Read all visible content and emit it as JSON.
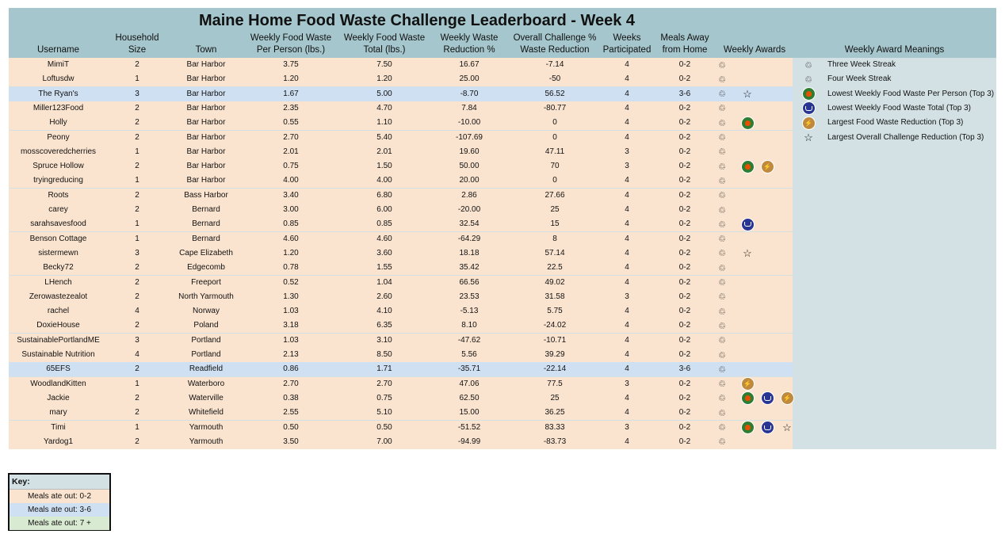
{
  "title": "Maine Home Food Waste Challenge Leaderboard - Week 4",
  "columns": [
    "Username",
    "Household Size",
    "Town",
    "Weekly Food Waste Per Person (lbs.)",
    "Weekly Food Waste Total (lbs.)",
    "Weekly Waste Reduction %",
    "Overall Challenge % Waste Reduction",
    "Weeks Participated",
    "Meals Away from Home",
    "Weekly Awards"
  ],
  "header_lines": {
    "username": [
      "",
      "Username"
    ],
    "household": [
      "Household",
      "Size"
    ],
    "town": [
      "",
      "Town"
    ],
    "per_person": [
      "Weekly Food Waste",
      "Per Person (lbs.)"
    ],
    "total": [
      "Weekly Food Waste",
      "Total (lbs.)"
    ],
    "weekly_red": [
      "Weekly Waste",
      "Reduction %"
    ],
    "overall_red": [
      "Overall Challenge %",
      "Waste Reduction"
    ],
    "weeks": [
      "Weeks",
      "Participated"
    ],
    "meals": [
      "Meals Away",
      "from Home"
    ],
    "awards": [
      "",
      "Weekly Awards"
    ],
    "meanings": [
      "",
      "Weekly Award Meanings"
    ]
  },
  "colors": {
    "band_0_2": "#fbe4cf",
    "band_3_6": "#cfe0f2",
    "band_7_plus": "#d9ead3",
    "header": "#a5c6cc",
    "panel": "#d3e1e4"
  },
  "rows": [
    {
      "user": "MimiT",
      "hh": "2",
      "town": "Bar Harbor",
      "pp": "3.75",
      "tot": "7.50",
      "wr": "16.67",
      "or": "-7.14",
      "wk": "4",
      "meals": "0-2",
      "awards": [
        "streak"
      ]
    },
    {
      "user": "Loftusdw",
      "hh": "1",
      "town": "Bar Harbor",
      "pp": "1.20",
      "tot": "1.20",
      "wr": "25.00",
      "or": "-50",
      "wk": "4",
      "meals": "0-2",
      "awards": [
        "streak"
      ]
    },
    {
      "user": "The Ryan's",
      "hh": "3",
      "town": "Bar Harbor",
      "pp": "1.67",
      "tot": "5.00",
      "wr": "-8.70",
      "or": "56.52",
      "wk": "4",
      "meals": "3-6",
      "awards": [
        "streak",
        "star"
      ]
    },
    {
      "user": "Miller123Food",
      "hh": "2",
      "town": "Bar Harbor",
      "pp": "2.35",
      "tot": "4.70",
      "wr": "7.84",
      "or": "-80.77",
      "wk": "4",
      "meals": "0-2",
      "awards": [
        "streak"
      ]
    },
    {
      "user": "Holly",
      "hh": "2",
      "town": "Bar Harbor",
      "pp": "0.55",
      "tot": "1.10",
      "wr": "-10.00",
      "or": "0",
      "wk": "4",
      "meals": "0-2",
      "awards": [
        "streak",
        "pp"
      ]
    },
    {
      "user": "Peony",
      "hh": "2",
      "town": "Bar Harbor",
      "pp": "2.70",
      "tot": "5.40",
      "wr": "-107.69",
      "or": "0",
      "wk": "4",
      "meals": "0-2",
      "awards": [
        "streak"
      ]
    },
    {
      "user": "mosscoveredcherries",
      "hh": "1",
      "town": "Bar Harbor",
      "pp": "2.01",
      "tot": "2.01",
      "wr": "19.60",
      "or": "47.11",
      "wk": "3",
      "meals": "0-2",
      "awards": [
        "streak"
      ]
    },
    {
      "user": "Spruce Hollow",
      "hh": "2",
      "town": "Bar Harbor",
      "pp": "0.75",
      "tot": "1.50",
      "wr": "50.00",
      "or": "70",
      "wk": "3",
      "meals": "0-2",
      "awards": [
        "streak",
        "pp",
        "red"
      ]
    },
    {
      "user": "tryingreducing",
      "hh": "1",
      "town": "Bar Harbor",
      "pp": "4.00",
      "tot": "4.00",
      "wr": "20.00",
      "or": "0",
      "wk": "4",
      "meals": "0-2",
      "awards": [
        "streak"
      ]
    },
    {
      "user": "Roots",
      "hh": "2",
      "town": "Bass Harbor",
      "pp": "3.40",
      "tot": "6.80",
      "wr": "2.86",
      "or": "27.66",
      "wk": "4",
      "meals": "0-2",
      "awards": [
        "streak"
      ]
    },
    {
      "user": "carey",
      "hh": "2",
      "town": "Bernard",
      "pp": "3.00",
      "tot": "6.00",
      "wr": "-20.00",
      "or": "25",
      "wk": "4",
      "meals": "0-2",
      "awards": [
        "streak"
      ]
    },
    {
      "user": "sarahsavesfood",
      "hh": "1",
      "town": "Bernard",
      "pp": "0.85",
      "tot": "0.85",
      "wr": "32.54",
      "or": "15",
      "wk": "4",
      "meals": "0-2",
      "awards": [
        "streak",
        "tot"
      ]
    },
    {
      "user": "Benson Cottage",
      "hh": "1",
      "town": "Bernard",
      "pp": "4.60",
      "tot": "4.60",
      "wr": "-64.29",
      "or": "8",
      "wk": "4",
      "meals": "0-2",
      "awards": [
        "streak"
      ]
    },
    {
      "user": "sistermewn",
      "hh": "3",
      "town": "Cape Elizabeth",
      "pp": "1.20",
      "tot": "3.60",
      "wr": "18.18",
      "or": "57.14",
      "wk": "4",
      "meals": "0-2",
      "awards": [
        "streak",
        "star"
      ]
    },
    {
      "user": "Becky72",
      "hh": "2",
      "town": "Edgecomb",
      "pp": "0.78",
      "tot": "1.55",
      "wr": "35.42",
      "or": "22.5",
      "wk": "4",
      "meals": "0-2",
      "awards": [
        "streak"
      ]
    },
    {
      "user": "LHench",
      "hh": "2",
      "town": "Freeport",
      "pp": "0.52",
      "tot": "1.04",
      "wr": "66.56",
      "or": "49.02",
      "wk": "4",
      "meals": "0-2",
      "awards": [
        "streak"
      ]
    },
    {
      "user": "Zerowastezealot",
      "hh": "2",
      "town": "North Yarmouth",
      "pp": "1.30",
      "tot": "2.60",
      "wr": "23.53",
      "or": "31.58",
      "wk": "3",
      "meals": "0-2",
      "awards": [
        "streak"
      ]
    },
    {
      "user": "rachel",
      "hh": "4",
      "town": "Norway",
      "pp": "1.03",
      "tot": "4.10",
      "wr": "-5.13",
      "or": "5.75",
      "wk": "4",
      "meals": "0-2",
      "awards": [
        "streak"
      ]
    },
    {
      "user": "DoxieHouse",
      "hh": "2",
      "town": "Poland",
      "pp": "3.18",
      "tot": "6.35",
      "wr": "8.10",
      "or": "-24.02",
      "wk": "4",
      "meals": "0-2",
      "awards": [
        "streak"
      ]
    },
    {
      "user": "SustainablePortlandME",
      "hh": "3",
      "town": "Portland",
      "pp": "1.03",
      "tot": "3.10",
      "wr": "-47.62",
      "or": "-10.71",
      "wk": "4",
      "meals": "0-2",
      "awards": [
        "streak"
      ]
    },
    {
      "user": "Sustainable Nutrition",
      "hh": "4",
      "town": "Portland",
      "pp": "2.13",
      "tot": "8.50",
      "wr": "5.56",
      "or": "39.29",
      "wk": "4",
      "meals": "0-2",
      "awards": [
        "streak"
      ]
    },
    {
      "user": "65EFS",
      "hh": "2",
      "town": "Readfield",
      "pp": "0.86",
      "tot": "1.71",
      "wr": "-35.71",
      "or": "-22.14",
      "wk": "4",
      "meals": "3-6",
      "awards": [
        "streak"
      ]
    },
    {
      "user": "WoodlandKitten",
      "hh": "1",
      "town": "Waterboro",
      "pp": "2.70",
      "tot": "2.70",
      "wr": "47.06",
      "or": "77.5",
      "wk": "3",
      "meals": "0-2",
      "awards": [
        "streak",
        "red"
      ]
    },
    {
      "user": "Jackie",
      "hh": "2",
      "town": "Waterville",
      "pp": "0.38",
      "tot": "0.75",
      "wr": "62.50",
      "or": "25",
      "wk": "4",
      "meals": "0-2",
      "awards": [
        "streak",
        "pp",
        "tot",
        "red"
      ]
    },
    {
      "user": "mary",
      "hh": "2",
      "town": "Whitefield",
      "pp": "2.55",
      "tot": "5.10",
      "wr": "15.00",
      "or": "36.25",
      "wk": "4",
      "meals": "0-2",
      "awards": [
        "streak"
      ]
    },
    {
      "user": "Timi",
      "hh": "1",
      "town": "Yarmouth",
      "pp": "0.50",
      "tot": "0.50",
      "wr": "-51.52",
      "or": "83.33",
      "wk": "3",
      "meals": "0-2",
      "awards": [
        "streak",
        "pp",
        "tot",
        "star"
      ]
    },
    {
      "user": "Yardog1",
      "hh": "2",
      "town": "Yarmouth",
      "pp": "3.50",
      "tot": "7.00",
      "wr": "-94.99",
      "or": "-83.73",
      "wk": "4",
      "meals": "0-2",
      "awards": [
        "streak"
      ]
    }
  ],
  "award_meanings": [
    {
      "icon": "streak-3",
      "text": "Three Week Streak"
    },
    {
      "icon": "streak-4",
      "text": "Four Week Streak"
    },
    {
      "icon": "pp",
      "text": "Lowest Weekly Food Waste Per Person (Top 3)"
    },
    {
      "icon": "tot",
      "text": "Lowest Weekly Food Waste Total (Top 3)"
    },
    {
      "icon": "red",
      "text": "Largest Food Waste Reduction (Top 3)"
    },
    {
      "icon": "star",
      "text": "Largest Overall Challenge Reduction (Top 3)"
    }
  ],
  "key": {
    "title": "Key:",
    "items": [
      {
        "label": "Meals ate out: 0-2",
        "band": "band_0_2"
      },
      {
        "label": "Meals ate out: 3-6",
        "band": "band_3_6"
      },
      {
        "label": "Meals ate out: 7 +",
        "band": "band_7_plus"
      }
    ]
  }
}
